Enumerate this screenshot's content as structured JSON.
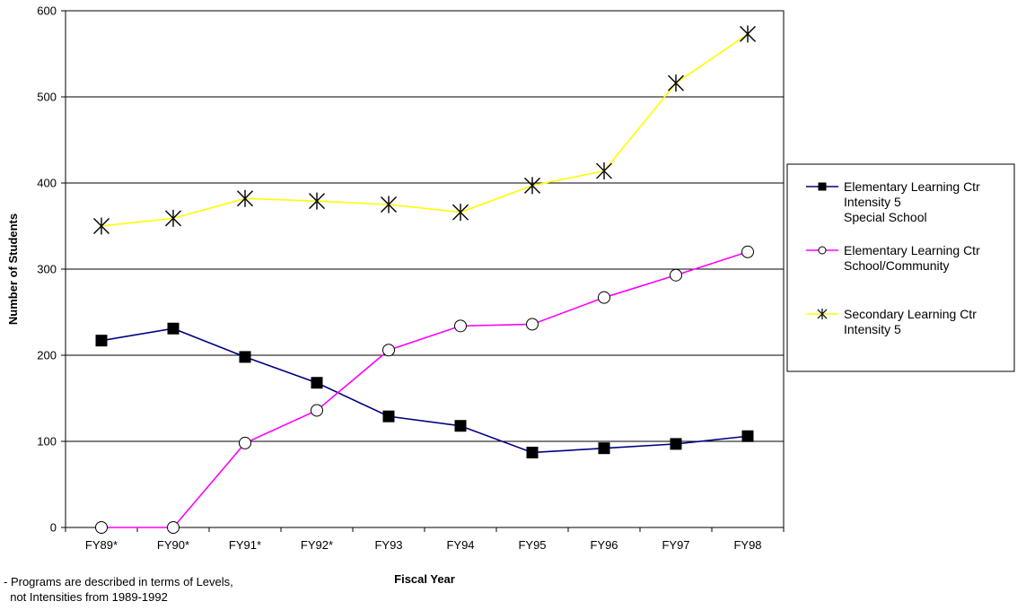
{
  "chart_data": {
    "type": "line",
    "xlabel": "Fiscal Year",
    "ylabel": "Number of Students",
    "categories": [
      "FY89*",
      "FY90*",
      "FY91*",
      "FY92*",
      "FY93",
      "FY94",
      "FY95",
      "FY96",
      "FY97",
      "FY98"
    ],
    "ylim": [
      0,
      600
    ],
    "yticks": [
      0,
      100,
      200,
      300,
      400,
      500,
      600
    ],
    "grid": true,
    "legend_position": "right",
    "series": [
      {
        "name": "Elementary Learning Ctr Intensity 5 Special School",
        "legend_lines": [
          "Elementary Learning Ctr",
          "Intensity 5",
          "Special School"
        ],
        "values": [
          217,
          231,
          198,
          168,
          129,
          118,
          87,
          92,
          97,
          106
        ],
        "color": "#000080",
        "marker": "filled-square"
      },
      {
        "name": "Elementary Learning Ctr School/Community",
        "legend_lines": [
          "Elementary Learning Ctr",
          "School/Community"
        ],
        "values": [
          0,
          0,
          98,
          136,
          206,
          234,
          236,
          267,
          293,
          320
        ],
        "color": "#ff00ff",
        "marker": "open-circle"
      },
      {
        "name": "Secondary Learning Ctr Intensity 5",
        "legend_lines": [
          "Secondary Learning Ctr",
          "Intensity 5"
        ],
        "values": [
          350,
          359,
          382,
          379,
          375,
          366,
          397,
          414,
          516,
          573
        ],
        "color": "#ffff00",
        "marker": "asterisk"
      }
    ]
  },
  "footnote": {
    "line1": "- Programs are described in terms of Levels,",
    "line2": "  not Intensities from 1989-1992"
  }
}
